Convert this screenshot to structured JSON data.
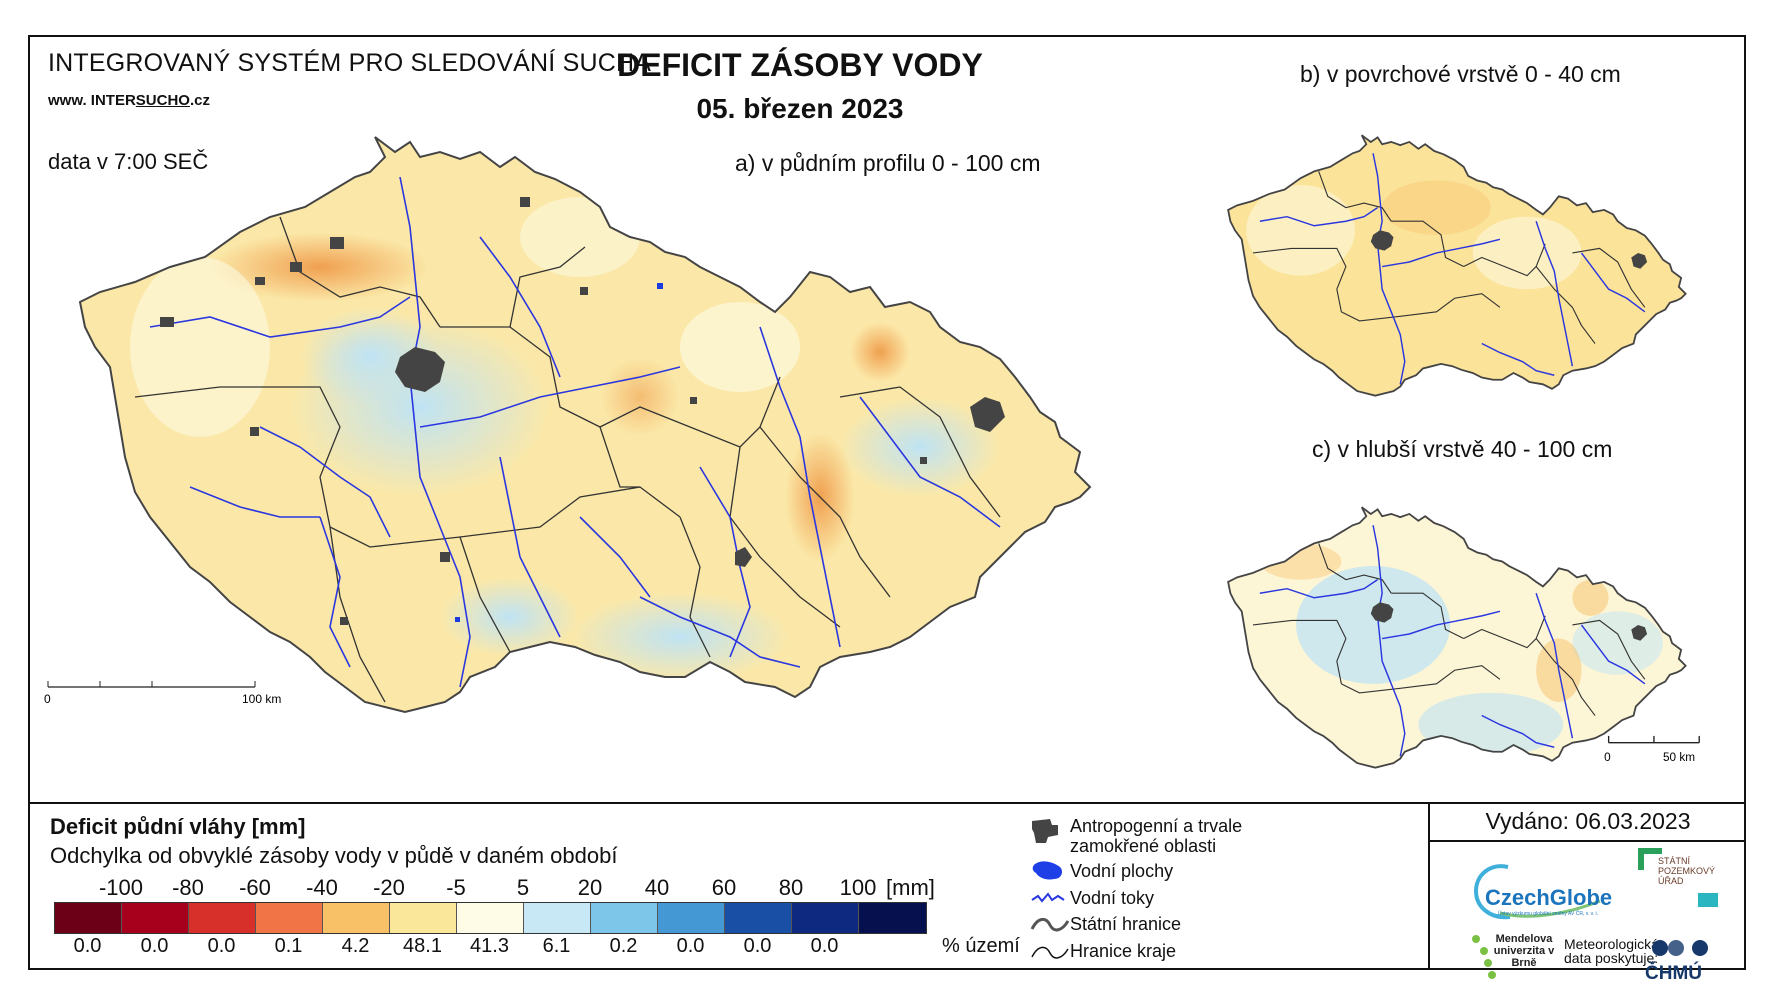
{
  "header": {
    "system_title": "INTEGROVANÝ SYSTÉM PRO SLEDOVÁNÍ SUCHA",
    "website_prefix": "www. INTER",
    "website_mid": "SUCHO",
    "website_suffix": ".cz",
    "data_time": "data v 7:00 SEČ",
    "main_title": "DEFICIT ZÁSOBY VODY",
    "date": "05. březen 2023"
  },
  "panels": {
    "a": "a) v půdním profilu 0 - 100 cm",
    "b": "b) v povrchové vrstvě 0 - 40 cm",
    "c": "c) v hlubší vrstvě 40 - 100 cm"
  },
  "scalebar_main": {
    "zero": "0",
    "end": "100 km"
  },
  "scalebar_small": {
    "zero": "0",
    "end": "50 km"
  },
  "legend": {
    "title": "Deficit půdní vláhy  [mm]",
    "subtitle": "Odchylka od obvyklé zásoby vody v půdě v daném období",
    "ticks": [
      "-100",
      "-80",
      "-60",
      "-40",
      "-20",
      "-5",
      "5",
      "20",
      "40",
      "60",
      "80",
      "100"
    ],
    "unit": "[mm]",
    "colors": [
      "#6b0016",
      "#a7001c",
      "#d7302b",
      "#f07445",
      "#f8c067",
      "#fbe79a",
      "#fefce6",
      "#c8e8f5",
      "#7ec6e9",
      "#4498d4",
      "#1a4fa6",
      "#0e2a80",
      "#06104e"
    ],
    "percentages": [
      "0.0",
      "0.0",
      "0.0",
      "0.1",
      "4.2",
      "48.1",
      "41.3",
      "6.1",
      "0.2",
      "0.0",
      "0.0",
      "0.0"
    ],
    "percent_label": "% území",
    "symbols": {
      "anthro": "Antropogenní a trvale zamokřené oblasti",
      "water_bodies": "Vodní plochy",
      "streams": "Vodní toky",
      "state_border": "Státní hranice",
      "region_border": "Hranice kraje"
    }
  },
  "issued": "Vydáno: 06.03.2023",
  "logos": {
    "czechglobe": "CzechGlobe",
    "czechglobe_sub": "Ústav výzkumu globální změny AV ČR, v. v. i.",
    "spu": "STÁTNÍ POZEMKOVÝ ÚŘAD",
    "mendel": "Mendelova univerzita v Brně",
    "meteo": "Meteorologická data poskytuje:",
    "chmu": "ČHMÚ"
  }
}
